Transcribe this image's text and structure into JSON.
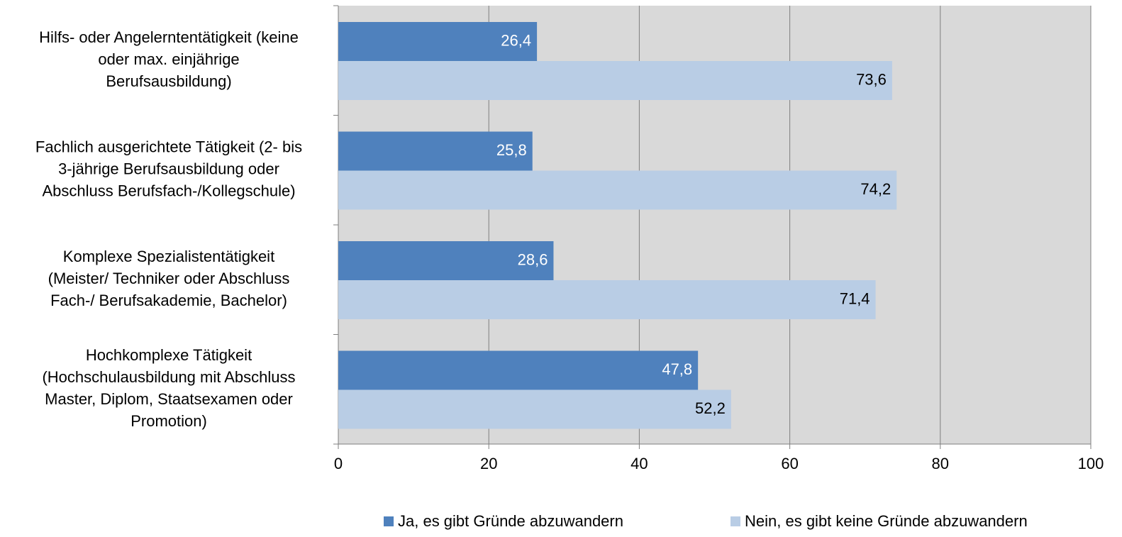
{
  "chart_data": {
    "type": "hbar",
    "categories": [
      [
        "Hilfs- oder Angelerntentätigkeit (keine",
        "oder max. einjährige",
        "Berufsausbildung)"
      ],
      [
        "Fachlich ausgerichtete Tätigkeit (2- bis",
        "3-jährige Berufsausbildung oder",
        "Abschluss Berufsfach-/Kollegschule)"
      ],
      [
        "Komplexe Spezialistentätigkeit",
        "(Meister/ Techniker oder Abschluss",
        "Fach-/ Berufsakademie, Bachelor)"
      ],
      [
        "Hochkomplexe Tätigkeit",
        "(Hochschulausbildung mit Abschluss",
        "Master, Diplom, Staatsexamen oder",
        "Promotion)"
      ]
    ],
    "series": [
      {
        "name": "Ja, es gibt Gründe abzuwandern",
        "color": "#4f81bd",
        "values": [
          26.4,
          25.8,
          28.6,
          47.8
        ],
        "value_labels": [
          "26,4",
          "25,8",
          "28,6",
          "47,8"
        ]
      },
      {
        "name": "Nein, es gibt keine Gründe abzuwandern",
        "color": "#b9cde5",
        "values": [
          73.6,
          74.2,
          71.4,
          52.2
        ],
        "value_labels": [
          "73,6",
          "74,2",
          "71,4",
          "52,2"
        ]
      }
    ],
    "xlim": [
      0,
      100
    ],
    "xticks": [
      0,
      20,
      40,
      60,
      80,
      100
    ],
    "grid": true,
    "legend": "bottom"
  }
}
